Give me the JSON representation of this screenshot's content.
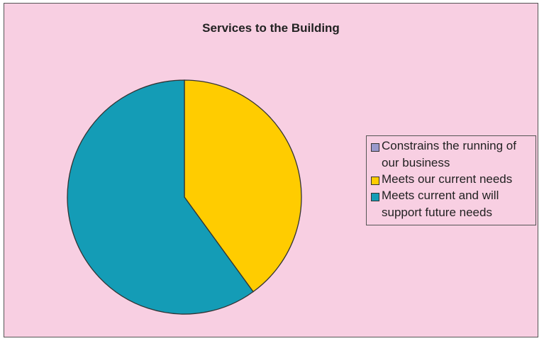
{
  "colors": {
    "background": "#f8cfe2",
    "border": "#555555",
    "slice_stroke": "#333333"
  },
  "chart_data": {
    "type": "pie",
    "title": "Services to the Building",
    "legend_position": "right",
    "categories": [
      "Constrains the running of our business",
      "Meets our current needs",
      "Meets current and will support future needs"
    ],
    "values": [
      0,
      40,
      60
    ],
    "colors": [
      "#9999cc",
      "#ffcc00",
      "#149cb6"
    ]
  }
}
